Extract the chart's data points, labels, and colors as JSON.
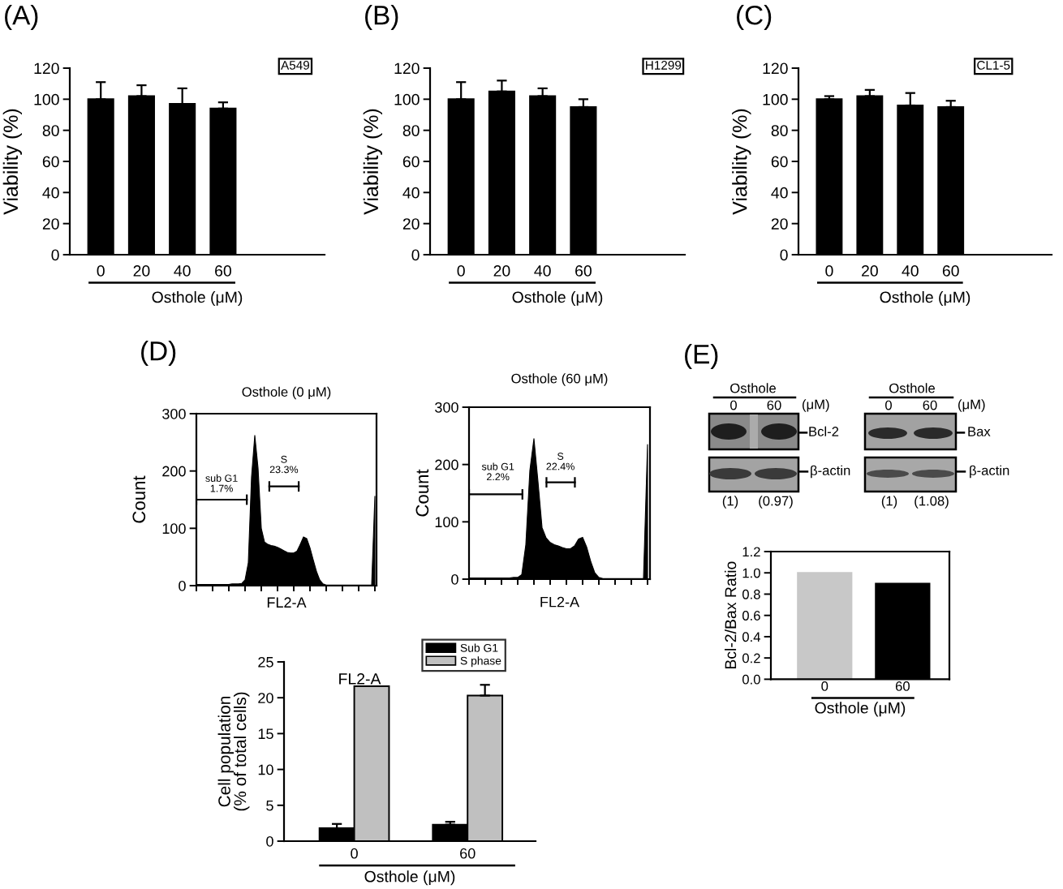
{
  "chart_data": [
    {
      "type": "bar",
      "title": "(A)",
      "categories": [
        "0",
        "20",
        "40",
        "60"
      ],
      "values": [
        100,
        102,
        97,
        94
      ],
      "errors": [
        [
          100,
          111
        ],
        [
          102,
          109
        ],
        [
          97,
          107
        ],
        [
          94,
          98
        ]
      ],
      "color": "#000000",
      "xlabel": "Osthole (μM)",
      "ylabel": "Viability (%)",
      "ylim": [
        0,
        120
      ],
      "yticks": [
        0,
        20,
        40,
        60,
        80,
        100,
        120
      ],
      "annotations": [
        "A549"
      ]
    },
    {
      "type": "bar",
      "title": "(B)",
      "categories": [
        "0",
        "20",
        "40",
        "60"
      ],
      "values": [
        100,
        105,
        102,
        95
      ],
      "errors": [
        [
          100,
          111
        ],
        [
          105,
          112
        ],
        [
          102,
          107
        ],
        [
          95,
          100
        ]
      ],
      "color": "#000000",
      "xlabel": "Osthole (μM)",
      "ylabel": "Viability (%)",
      "ylim": [
        0,
        120
      ],
      "yticks": [
        0,
        20,
        40,
        60,
        80,
        100,
        120
      ],
      "annotations": [
        "H1299"
      ]
    },
    {
      "type": "bar",
      "title": "(C)",
      "categories": [
        "0",
        "20",
        "40",
        "60"
      ],
      "values": [
        100,
        102,
        96,
        95
      ],
      "errors": [
        [
          100,
          102
        ],
        [
          102,
          106
        ],
        [
          96,
          104
        ],
        [
          95,
          99
        ]
      ],
      "color": "#000000",
      "xlabel": "Osthole (μM)",
      "ylabel": "Viability (%)",
      "ylim": [
        0,
        120
      ],
      "yticks": [
        0,
        20,
        40,
        60,
        80,
        100,
        120
      ],
      "annotations": [
        "CL1-5"
      ]
    },
    {
      "type": "area",
      "title": "(D)",
      "subtitle": "Osthole (0 μM)",
      "categories": [
        null,
        null,
        null,
        null,
        null,
        null,
        null,
        null,
        null,
        null,
        null,
        null,
        null,
        null,
        null,
        null,
        null,
        null,
        null,
        null,
        null,
        null,
        null,
        null,
        null,
        null,
        null,
        null,
        null,
        null,
        null,
        null,
        null,
        null,
        null,
        null,
        null,
        null,
        null,
        null,
        null,
        null,
        null,
        null,
        null,
        null,
        null,
        null,
        null,
        null,
        null,
        null,
        null,
        null,
        null,
        null
      ],
      "values": [
        2,
        2,
        2,
        2,
        2,
        2,
        2,
        2,
        2,
        2,
        2,
        3,
        3,
        3,
        4,
        10,
        40,
        190,
        262,
        205,
        100,
        76,
        72,
        70,
        69,
        67,
        64,
        61,
        58,
        57,
        57,
        60,
        72,
        85,
        82,
        66,
        45,
        25,
        10,
        3,
        1,
        1,
        1,
        1,
        1,
        1,
        1,
        1,
        1,
        1,
        1,
        1,
        1,
        1,
        1,
        156
      ],
      "color": "#000000",
      "xlabel": "FL2-A",
      "ylabel": "Count",
      "ylim": [
        0,
        300
      ],
      "yticks": [
        0,
        100,
        200,
        300
      ],
      "annotations": [
        "sub G1\n1.7%",
        "S\n23.3%"
      ]
    },
    {
      "type": "area",
      "title": "Osthole (60 μM)",
      "categories": [
        null,
        null,
        null,
        null,
        null,
        null,
        null,
        null,
        null,
        null,
        null,
        null,
        null,
        null,
        null,
        null,
        null,
        null,
        null,
        null,
        null,
        null,
        null,
        null,
        null,
        null,
        null,
        null,
        null,
        null,
        null,
        null,
        null,
        null,
        null,
        null,
        null,
        null,
        null,
        null,
        null,
        null,
        null,
        null,
        null
      ],
      "values": [
        2,
        2,
        2,
        2,
        2,
        2,
        2,
        2,
        2,
        2,
        2,
        3,
        3,
        8,
        60,
        190,
        245,
        170,
        90,
        72,
        64,
        60,
        58,
        55,
        53,
        53,
        58,
        70,
        73,
        56,
        31,
        11,
        3,
        1,
        1,
        1,
        1,
        1,
        1,
        1,
        1,
        1,
        1,
        1,
        235
      ],
      "color": "#000000",
      "xlabel": "FL2-A",
      "ylabel": "Count",
      "ylim": [
        0,
        300
      ],
      "yticks": [
        0,
        100,
        200,
        300
      ],
      "annotations": [
        "sub G1\n2.2%",
        "S\n22.4%"
      ]
    },
    {
      "type": "bar",
      "categories": [
        "0",
        "60"
      ],
      "series": [
        {
          "name": "Sub G1",
          "color": "#000000",
          "values": [
            1.8,
            2.3
          ],
          "errors": [
            [
              1.8,
              2.4
            ],
            [
              2.3,
              2.7
            ]
          ]
        },
        {
          "name": "S phase",
          "color": "#c0c0c0",
          "values": [
            21.6,
            20.3
          ],
          "errors": [
            null,
            [
              20.3,
              21.8
            ]
          ]
        }
      ],
      "xlabel": "Osthole (μM)",
      "ylabel": "Cell population\n(% of total cells)",
      "ylim": [
        0,
        25
      ],
      "yticks": [
        0,
        5,
        10,
        15,
        20,
        25
      ],
      "legend": "top right",
      "annotations": [
        "FL2-A"
      ]
    },
    {
      "type": "other",
      "title": "(E)",
      "annotations": [
        "Osthole",
        "(μM)",
        "0",
        "60",
        "Bcl-2",
        "β-actin",
        "(1)",
        "(0.97)",
        "Osthole",
        "(μM)",
        "0",
        "60",
        "Bax",
        "β-actin",
        "(1)",
        "(1.08)"
      ]
    },
    {
      "type": "bar",
      "categories": [
        "0",
        "60"
      ],
      "values": [
        1.0,
        0.9
      ],
      "colors": [
        "#c8c8c8",
        "#000000"
      ],
      "xlabel": "Osthole (μM)",
      "ylabel": "Bcl-2/Bax Ratio",
      "ylim": [
        0,
        1.2
      ],
      "yticks": [
        {
          "value": 0,
          "label": "0.0"
        },
        0.2,
        0.4,
        0.6,
        0.8,
        {
          "value": 1,
          "label": "1.0"
        },
        1.2
      ]
    }
  ]
}
